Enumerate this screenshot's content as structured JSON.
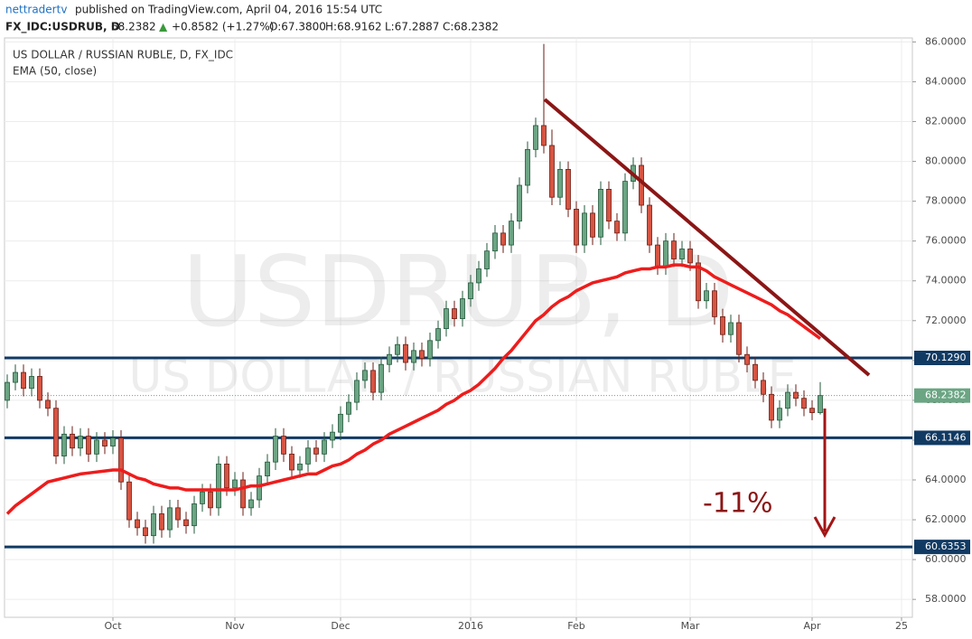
{
  "header": {
    "publisher": "nettradertv",
    "published": "published on TradingView.com, April 04, 2016 15:54 UTC",
    "symbol": "FX_IDC:USDRUB, D",
    "price": "68.2382",
    "arrow": "▲",
    "change": "+0.8582 (+1.27%)",
    "o": "O:67.3800",
    "h": "H:68.9162",
    "l": "L:67.2887",
    "c": "C:68.2382"
  },
  "chart_data": {
    "type": "candlestick",
    "title": "US DOLLAR / RUSSIAN RUBLE, D, FX_IDC",
    "watermark": "USDRUB, D",
    "watermark_sub": "US DOLLAR / RUSSIAN RUBLE",
    "annotation": "-11%",
    "up_color": "#6ba583",
    "down_color": "#d75442",
    "categories": [
      null,
      null,
      null,
      null,
      null,
      null,
      null,
      null,
      null,
      null,
      null,
      null,
      null,
      "Oct",
      null,
      null,
      null,
      null,
      null,
      null,
      null,
      null,
      null,
      null,
      null,
      null,
      null,
      null,
      "Nov",
      null,
      null,
      null,
      null,
      null,
      null,
      null,
      null,
      null,
      null,
      null,
      null,
      "Dec",
      null,
      null,
      null,
      null,
      null,
      null,
      null,
      null,
      null,
      null,
      null,
      null,
      null,
      null,
      null,
      "2016",
      null,
      null,
      null,
      null,
      null,
      null,
      null,
      null,
      null,
      null,
      null,
      null,
      "Feb",
      null,
      null,
      null,
      null,
      null,
      null,
      null,
      null,
      null,
      null,
      null,
      null,
      null,
      "Mar",
      null,
      null,
      null,
      null,
      null,
      null,
      null,
      null,
      null,
      null,
      null,
      null,
      null,
      null,
      "Apr",
      null,
      null,
      null,
      null,
      null,
      null,
      null,
      null,
      null,
      null,
      "25"
    ],
    "open": [
      68.0,
      68.9,
      69.4,
      68.6,
      69.2,
      68.0,
      67.6,
      65.2,
      66.3,
      65.6,
      66.2,
      65.3,
      66.0,
      65.7,
      66.1,
      63.9,
      62.0,
      61.6,
      61.2,
      62.3,
      61.5,
      62.6,
      62.0,
      61.7,
      62.8,
      63.4,
      62.6,
      64.8,
      63.6,
      64.0,
      62.6,
      63.0,
      64.2,
      64.9,
      66.2,
      65.3,
      64.5,
      64.8,
      65.6,
      65.3,
      66.0,
      66.4,
      67.3,
      67.9,
      69.0,
      69.5,
      68.4,
      69.8,
      70.3,
      70.8,
      69.9,
      70.5,
      70.1,
      71.0,
      71.6,
      72.6,
      72.1,
      73.1,
      73.9,
      74.6,
      75.5,
      76.4,
      75.8,
      77.0,
      78.8,
      80.6,
      81.8,
      80.8,
      78.2,
      79.6,
      77.6,
      75.8,
      77.4,
      76.2,
      78.6,
      77.0,
      76.4,
      79.0,
      79.8,
      77.8,
      75.8,
      74.7,
      76.0,
      75.1,
      75.6,
      74.9,
      73.0,
      73.5,
      72.2,
      71.3,
      71.9,
      70.3,
      69.8,
      69.0,
      68.3,
      67.0,
      67.6,
      68.4,
      68.1,
      67.6,
      67.38,
      null,
      null,
      null,
      null,
      null,
      null,
      null,
      null,
      null,
      null
    ],
    "high": [
      69.3,
      69.8,
      69.8,
      69.6,
      69.6,
      68.4,
      68.0,
      66.7,
      66.7,
      66.6,
      66.6,
      66.4,
      66.4,
      66.5,
      66.5,
      64.3,
      62.4,
      62.0,
      62.7,
      62.7,
      63.0,
      63.0,
      62.4,
      63.2,
      63.8,
      63.8,
      65.2,
      65.2,
      64.4,
      64.4,
      63.4,
      64.6,
      65.3,
      66.6,
      66.6,
      65.7,
      65.2,
      66.0,
      66.0,
      66.4,
      66.8,
      67.7,
      68.3,
      69.4,
      69.9,
      69.9,
      70.2,
      70.7,
      71.2,
      71.2,
      70.9,
      70.9,
      71.4,
      72.0,
      73.0,
      73.0,
      73.5,
      74.3,
      75.0,
      75.9,
      76.8,
      76.8,
      77.4,
      79.2,
      81.0,
      82.2,
      85.9,
      81.6,
      80.0,
      80.0,
      78.0,
      77.8,
      77.8,
      79.0,
      79.0,
      77.4,
      79.4,
      80.2,
      80.2,
      78.2,
      76.2,
      76.4,
      76.4,
      76.0,
      76.0,
      75.3,
      73.9,
      73.9,
      72.6,
      72.3,
      72.3,
      70.7,
      70.2,
      69.4,
      68.7,
      68.0,
      68.8,
      68.8,
      68.5,
      68.0,
      68.9162,
      null,
      null,
      null,
      null,
      null,
      null,
      null,
      null,
      null,
      null
    ],
    "low": [
      67.6,
      68.5,
      68.2,
      68.2,
      67.6,
      67.2,
      64.8,
      64.8,
      65.2,
      65.2,
      64.9,
      64.9,
      65.3,
      65.3,
      63.5,
      61.6,
      61.2,
      60.8,
      60.8,
      61.1,
      61.1,
      61.6,
      61.3,
      61.3,
      62.4,
      62.2,
      62.2,
      63.2,
      63.2,
      62.2,
      62.2,
      62.6,
      63.8,
      64.5,
      64.9,
      64.1,
      64.1,
      64.4,
      64.9,
      64.9,
      65.6,
      66.0,
      66.9,
      67.5,
      68.6,
      68.0,
      68.0,
      69.4,
      69.9,
      69.5,
      69.5,
      69.7,
      69.7,
      70.6,
      71.2,
      71.7,
      71.7,
      72.7,
      73.5,
      74.2,
      75.1,
      75.4,
      75.4,
      76.6,
      78.4,
      80.2,
      80.4,
      77.8,
      77.8,
      77.2,
      75.4,
      75.4,
      75.8,
      75.8,
      76.6,
      76.0,
      76.0,
      78.6,
      77.4,
      75.4,
      74.3,
      74.3,
      74.7,
      74.7,
      74.5,
      72.6,
      72.6,
      71.8,
      70.9,
      70.9,
      69.9,
      69.4,
      68.6,
      67.9,
      66.6,
      66.6,
      67.2,
      67.7,
      67.2,
      67.0,
      67.2887,
      null,
      null,
      null,
      null,
      null,
      null,
      null,
      null,
      null,
      null
    ],
    "close": [
      68.9,
      69.4,
      68.6,
      69.2,
      68.0,
      67.6,
      65.2,
      66.3,
      65.6,
      66.2,
      65.3,
      66.0,
      65.7,
      66.1,
      63.9,
      62.0,
      61.6,
      61.2,
      62.3,
      61.5,
      62.6,
      62.0,
      61.7,
      62.8,
      63.4,
      62.6,
      64.8,
      63.6,
      64.0,
      62.6,
      63.0,
      64.2,
      64.9,
      66.2,
      65.3,
      64.5,
      64.8,
      65.6,
      65.3,
      66.0,
      66.4,
      67.3,
      67.9,
      69.0,
      69.5,
      68.4,
      69.8,
      70.3,
      70.8,
      69.9,
      70.5,
      70.1,
      71.0,
      71.6,
      72.6,
      72.1,
      73.1,
      73.9,
      74.6,
      75.5,
      76.4,
      75.8,
      77.0,
      78.8,
      80.6,
      81.8,
      80.8,
      78.2,
      79.6,
      77.6,
      75.8,
      77.4,
      76.2,
      78.6,
      77.0,
      76.4,
      79.0,
      79.8,
      77.8,
      75.8,
      74.7,
      76.0,
      75.1,
      75.6,
      74.9,
      73.0,
      73.5,
      72.2,
      71.3,
      71.9,
      70.3,
      69.8,
      69.0,
      68.3,
      67.0,
      67.6,
      68.4,
      68.1,
      67.6,
      67.38,
      68.2382,
      null,
      null,
      null,
      null,
      null,
      null,
      null,
      null,
      null,
      null
    ],
    "ema": {
      "name": "EMA (50, close)",
      "color": "#ee1c1c",
      "values": [
        62.3,
        62.7,
        63.0,
        63.3,
        63.6,
        63.9,
        64.0,
        64.1,
        64.2,
        64.3,
        64.35,
        64.4,
        64.45,
        64.5,
        64.5,
        64.3,
        64.1,
        64.0,
        63.8,
        63.7,
        63.6,
        63.6,
        63.5,
        63.5,
        63.5,
        63.5,
        63.5,
        63.5,
        63.5,
        63.6,
        63.7,
        63.7,
        63.8,
        63.9,
        64.0,
        64.1,
        64.2,
        64.3,
        64.3,
        64.5,
        64.7,
        64.8,
        65.0,
        65.3,
        65.5,
        65.8,
        66.0,
        66.3,
        66.5,
        66.7,
        66.9,
        67.1,
        67.3,
        67.5,
        67.8,
        68.0,
        68.3,
        68.5,
        68.8,
        69.2,
        69.6,
        70.1,
        70.5,
        71.0,
        71.5,
        72.0,
        72.3,
        72.7,
        73.0,
        73.2,
        73.5,
        73.7,
        73.9,
        74.0,
        74.1,
        74.2,
        74.4,
        74.5,
        74.6,
        74.6,
        74.7,
        74.7,
        74.8,
        74.8,
        74.7,
        74.7,
        74.5,
        74.2,
        74.0,
        73.8,
        73.6,
        73.4,
        73.2,
        73.0,
        72.8,
        72.5,
        72.3,
        72.0,
        71.7,
        71.4,
        71.1,
        null,
        null,
        null,
        null,
        null,
        null,
        null,
        null,
        null,
        null
      ]
    },
    "levels": [
      {
        "value": 70.129,
        "label": "70.1290"
      },
      {
        "value": 66.1146,
        "label": "66.1146"
      },
      {
        "value": 60.6353,
        "label": "60.6353"
      }
    ],
    "level_color": "#113a63",
    "last_price": {
      "value": 68.2382,
      "label": "68.2382"
    },
    "last_color": "#6ba583",
    "ylim": [
      57.1,
      86.2
    ],
    "yticks": [
      {
        "value": 58,
        "label": "58.0000"
      },
      {
        "value": 60,
        "label": "60.0000"
      },
      {
        "value": 62,
        "label": "62.0000"
      },
      {
        "value": 64,
        "label": "64.0000"
      },
      {
        "value": 66,
        "label": "66.0000"
      },
      {
        "value": 68,
        "label": "68.0000"
      },
      {
        "value": 70,
        "label": "70.0000"
      },
      {
        "value": 72,
        "label": "72.0000"
      },
      {
        "value": 74,
        "label": "74.0000"
      },
      {
        "value": 76,
        "label": "76.0000"
      },
      {
        "value": 78,
        "label": "78.0000"
      },
      {
        "value": 80,
        "label": "80.0000"
      },
      {
        "value": 82,
        "label": "82.0000"
      },
      {
        "value": 84,
        "label": "84.0000"
      },
      {
        "value": 86,
        "label": "86.0000"
      }
    ],
    "grid": true
  }
}
